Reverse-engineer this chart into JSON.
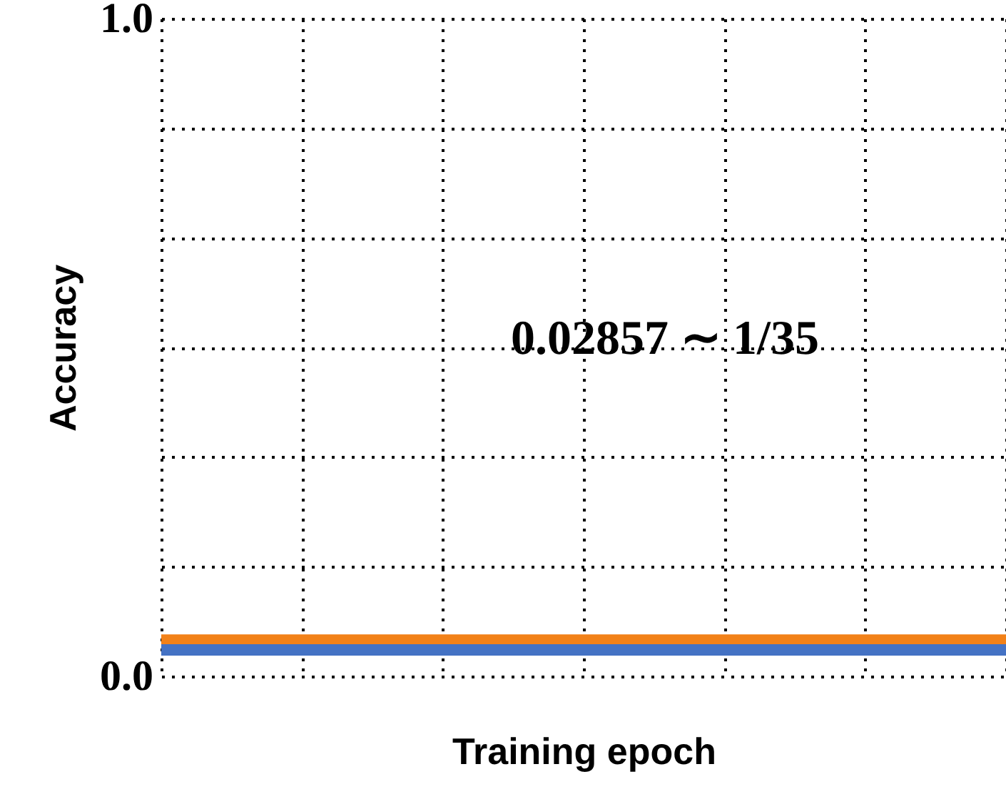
{
  "chart_data": {
    "type": "line",
    "xlabel": "Training epoch",
    "ylabel": "Accuracy",
    "categories": [
      null,
      null,
      null,
      null,
      null,
      null,
      null
    ],
    "series": [
      {
        "color": "#f28118",
        "values": [
          0.055,
          0.055,
          0.055,
          0.055,
          0.055,
          0.055,
          0.055
        ]
      },
      {
        "color": "#4472c4",
        "values": [
          0.04,
          0.04,
          0.04,
          0.04,
          0.04,
          0.04,
          0.04
        ]
      }
    ],
    "ylim": [
      0,
      1
    ],
    "yticks": [
      {
        "value": 0,
        "label": "0.0"
      },
      {
        "value": 0.1667,
        "label": null
      },
      {
        "value": 0.3333,
        "label": null
      },
      {
        "value": 0.5,
        "label": null
      },
      {
        "value": 0.6667,
        "label": null
      },
      {
        "value": 0.8333,
        "label": null
      },
      {
        "value": 1,
        "label": "1.0"
      }
    ],
    "tick_labels": "y",
    "grid": true,
    "marker": "none",
    "line_style": "solid",
    "annotations": [
      "0.02857 ∼ 1/35"
    ]
  }
}
